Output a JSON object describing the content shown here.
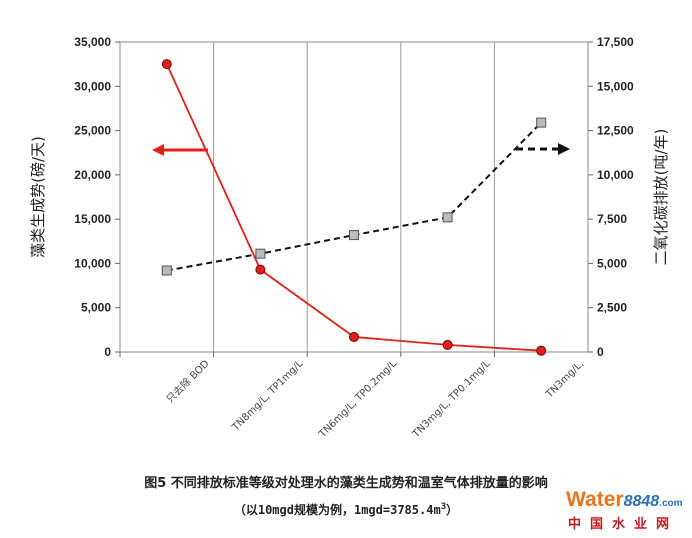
{
  "chart_data": {
    "type": "line",
    "categories": [
      "只去除 BOD",
      "TN8mg/L, TP1mg/L",
      "TN6mg/L, TP0.2mg/L",
      "TN3mg/L, TP0.1mg/L",
      "TN3mg/L,"
    ],
    "series": [
      {
        "axis": "left",
        "marker": "circle",
        "line": "solid",
        "color": "#e0201b",
        "values": [
          32500,
          9300,
          1700,
          800,
          150
        ]
      },
      {
        "axis": "right",
        "marker": "square",
        "line": "dashed",
        "color": "#111111",
        "values": [
          4600,
          5550,
          6600,
          7600,
          12950
        ]
      }
    ],
    "ylabel": "藻类生成势(磅/天)",
    "y2label": "二氧化碳排放(吨/年)",
    "ylim": [
      0,
      35000
    ],
    "y2lim": [
      0,
      17500
    ],
    "yticks": [
      "0",
      "5,000",
      "10,000",
      "15,000",
      "20,000",
      "25,000",
      "30,000",
      "35,000"
    ],
    "y2ticks": [
      "0",
      "2,500",
      "5,000",
      "7,500",
      "10,000",
      "12,500",
      "15,000",
      "17,500"
    ],
    "grid": "vertical",
    "arrows": [
      {
        "series": 0,
        "direction": "left"
      },
      {
        "series": 1,
        "direction": "right"
      }
    ]
  },
  "caption": {
    "line1": "图5 不同排放标准等级对处理水的藻类生成势和温室气体排放量的影响",
    "line2": "（以10mgd规模为例，1mgd=3785.4m",
    "line2_sup": "3",
    "line2_end": "）"
  },
  "logo": {
    "brand": "Water",
    "num": "8848",
    "dot": ".com",
    "cn": "中国水业网"
  },
  "colors": {
    "series1": "#e0201b",
    "series2": "#111111",
    "marker2_fill": "#bbbbbb"
  }
}
